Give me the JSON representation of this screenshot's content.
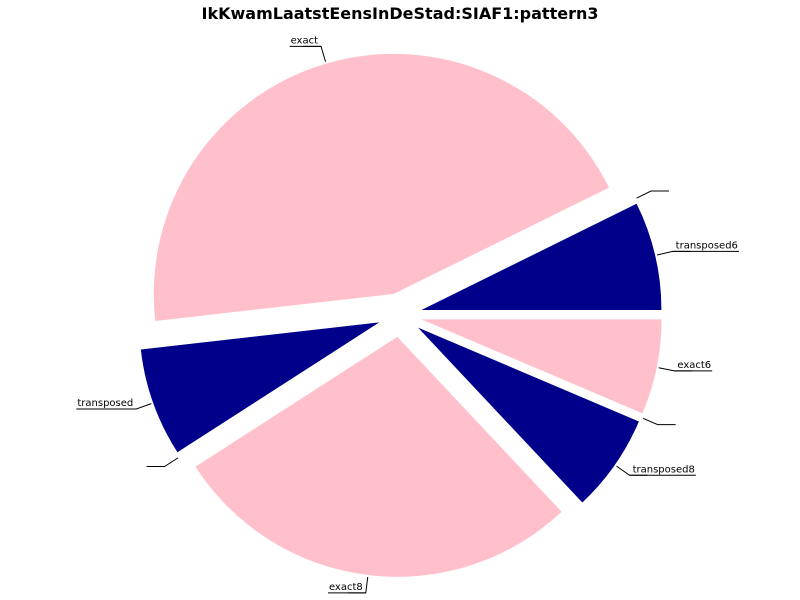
{
  "chart_data": {
    "type": "pie",
    "title": "IkKwamLaatstEensInDeStad:SIAF1:pattern3",
    "labels": [
      "transposed6",
      "",
      "exact",
      "transposed",
      "",
      "exact8",
      "transposed8",
      "",
      "exact6"
    ],
    "values": [
      7.3,
      0.0,
      44.5,
      7.3,
      0.0,
      27.9,
      6.6,
      0.0,
      6.4
    ],
    "colors": [
      "#00008b",
      "#00008b",
      "#ffc0cb",
      "#00008b",
      "#00008b",
      "#ffc0cb",
      "#00008b",
      "#00008b",
      "#ffc0cb"
    ],
    "start_angle_deg": 0,
    "direction": "counterclockwise",
    "exploded": true,
    "legend": "none"
  }
}
